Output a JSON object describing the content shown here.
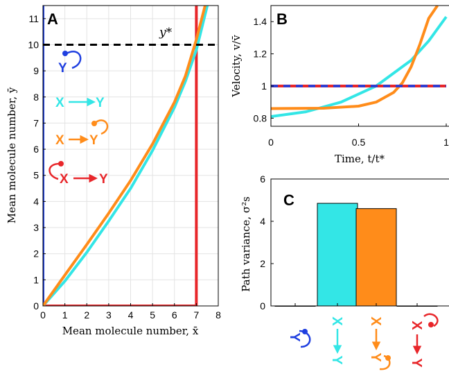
{
  "colors": {
    "blue": "#1f3fe0",
    "cyan": "#33e6e6",
    "orange": "#ff8c1a",
    "red": "#e8262a",
    "grid": "#e3e3e3",
    "axis": "#000000"
  },
  "panels": {
    "A": {
      "letter": "A",
      "xlabel": "Mean molecule number, x̄",
      "ylabel": "Mean molecule number, ȳ",
      "ystar_label": "y*",
      "legend": {
        "y_label": "Y",
        "cyan_x": "X",
        "cyan_y": "Y",
        "orange_x": "X",
        "orange_y": "Y",
        "red_x": "X",
        "red_y": "Y"
      }
    },
    "B": {
      "letter": "B",
      "xlabel": "Time, t/t*",
      "ylabel": "Velocity, v/v̄"
    },
    "C": {
      "letter": "C",
      "ylabel": "Path variance, σ²s",
      "icons": {
        "x": "X",
        "y": "Y"
      }
    }
  },
  "chart_data": [
    {
      "id": "A",
      "type": "line",
      "xlim": [
        0,
        8
      ],
      "ylim": [
        0,
        11.5
      ],
      "xticks": [
        0,
        1,
        2,
        3,
        4,
        5,
        6,
        7,
        8
      ],
      "yticks": [
        0,
        1,
        2,
        3,
        4,
        5,
        6,
        7,
        8,
        9,
        10,
        11
      ],
      "grid": true,
      "series": [
        {
          "color": "blue",
          "x": [
            0,
            0
          ],
          "y": [
            0,
            11.5
          ]
        },
        {
          "color": "red",
          "x": [
            0,
            7,
            7
          ],
          "y": [
            0,
            0,
            11.5
          ]
        },
        {
          "color": "cyan",
          "x": [
            0,
            1,
            2,
            3,
            4,
            5,
            6,
            6.5,
            7,
            7.5
          ],
          "y": [
            0,
            0.95,
            2.05,
            3.25,
            4.5,
            5.95,
            7.6,
            8.6,
            9.8,
            11.5
          ]
        },
        {
          "color": "orange",
          "x": [
            0,
            1,
            2,
            3,
            4,
            5,
            6,
            6.5,
            7,
            7.4
          ],
          "y": [
            0,
            1.18,
            2.35,
            3.55,
            4.8,
            6.2,
            7.8,
            8.8,
            10.2,
            11.5
          ]
        }
      ],
      "hline": {
        "y": 10,
        "style": "dashed",
        "color": "axis"
      }
    },
    {
      "id": "B",
      "type": "line",
      "xlim": [
        0,
        1
      ],
      "ylim": [
        0.75,
        1.5
      ],
      "xticks": [
        0,
        0.5,
        1
      ],
      "yticks": [
        0.8,
        1,
        1.2,
        1.4
      ],
      "grid": false,
      "series": [
        {
          "color": "cyan",
          "x": [
            0,
            0.2,
            0.4,
            0.6,
            0.8,
            0.9,
            1.0
          ],
          "y": [
            0.81,
            0.84,
            0.9,
            1.0,
            1.16,
            1.28,
            1.43
          ]
        },
        {
          "color": "orange",
          "x": [
            0,
            0.3,
            0.5,
            0.6,
            0.7,
            0.75,
            0.8,
            0.85,
            0.9,
            0.95
          ],
          "y": [
            0.86,
            0.862,
            0.875,
            0.9,
            0.96,
            1.02,
            1.12,
            1.26,
            1.42,
            1.5
          ]
        },
        {
          "color": "red",
          "x": [
            0,
            1
          ],
          "y": [
            1,
            1
          ]
        },
        {
          "color": "blue",
          "x": [
            0,
            1
          ],
          "y": [
            1,
            1
          ],
          "dashed": true
        }
      ]
    },
    {
      "id": "C",
      "type": "bar",
      "ylim": [
        0,
        6
      ],
      "yticks": [
        0,
        2,
        4,
        6
      ],
      "categories": [
        "blue",
        "cyan",
        "orange",
        "red"
      ],
      "values": [
        0,
        4.85,
        4.6,
        0
      ]
    }
  ]
}
